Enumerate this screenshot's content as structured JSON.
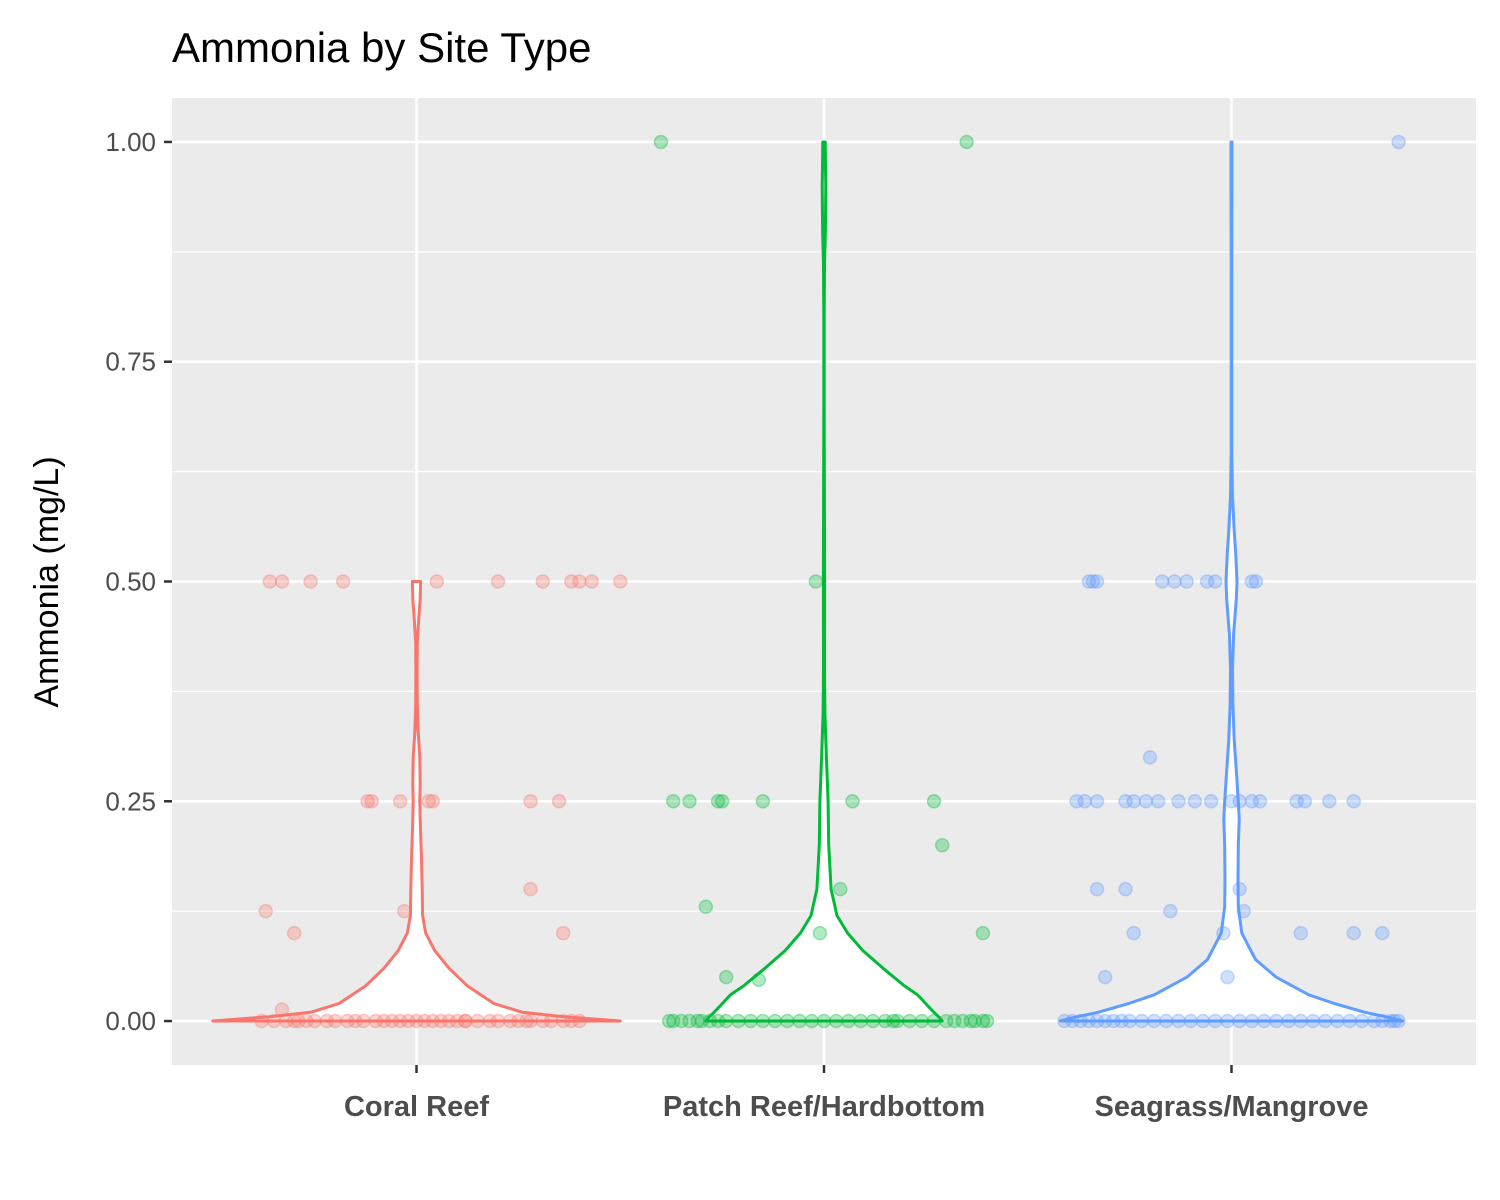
{
  "chart_data": {
    "type": "violin",
    "title": "Ammonia by Site Type",
    "xlabel": "",
    "ylabel": "Ammonia (mg/L)",
    "ylim": [
      -0.05,
      1.05
    ],
    "yticks": [
      0.0,
      0.25,
      0.5,
      0.75,
      1.0
    ],
    "ytick_labels": [
      "0.00",
      "0.25",
      "0.50",
      "0.75",
      "1.00"
    ],
    "categories": [
      "Coral Reef",
      "Patch Reef/Hardbottom",
      "Seagrass/Mangrove"
    ],
    "grid": true,
    "legend": "none",
    "colors": {
      "panel_bg": "#ebebeb",
      "grid": "#ffffff",
      "violin_fill": "#ffffff",
      "tick": "#333333"
    },
    "series": [
      {
        "category": "Coral Reef",
        "color": "#F8766D",
        "max_half_width": 0.5,
        "violin_profile": [
          [
            0.0,
            1.0
          ],
          [
            0.005,
            0.72
          ],
          [
            0.01,
            0.52
          ],
          [
            0.02,
            0.38
          ],
          [
            0.04,
            0.25
          ],
          [
            0.06,
            0.16
          ],
          [
            0.08,
            0.09
          ],
          [
            0.1,
            0.045
          ],
          [
            0.12,
            0.03
          ],
          [
            0.15,
            0.028
          ],
          [
            0.18,
            0.025
          ],
          [
            0.2,
            0.022
          ],
          [
            0.23,
            0.018
          ],
          [
            0.25,
            0.016
          ],
          [
            0.27,
            0.018
          ],
          [
            0.3,
            0.016
          ],
          [
            0.33,
            0.008
          ],
          [
            0.36,
            0.004
          ],
          [
            0.4,
            0.003
          ],
          [
            0.43,
            0.004
          ],
          [
            0.46,
            0.012
          ],
          [
            0.48,
            0.018
          ],
          [
            0.5,
            0.02
          ]
        ],
        "points": [
          [
            0.5,
            0.5
          ],
          [
            0.4,
            0.5
          ],
          [
            0.2,
            0.5
          ],
          [
            0.05,
            0.5
          ],
          [
            0.38,
            0.5
          ],
          [
            0.43,
            0.5
          ],
          [
            0.31,
            0.5
          ],
          [
            -0.36,
            0.5
          ],
          [
            -0.26,
            0.5
          ],
          [
            -0.18,
            0.5
          ],
          [
            -0.33,
            0.5
          ],
          [
            -0.12,
            0.25
          ],
          [
            -0.11,
            0.25
          ],
          [
            -0.04,
            0.25
          ],
          [
            0.03,
            0.25
          ],
          [
            0.04,
            0.25
          ],
          [
            0.28,
            0.25
          ],
          [
            0.35,
            0.25
          ],
          [
            -0.37,
            0.125
          ],
          [
            -0.03,
            0.125
          ],
          [
            0.28,
            0.15
          ],
          [
            0.36,
            0.1
          ],
          [
            -0.3,
            0.1
          ],
          [
            -0.33,
            0.013
          ],
          [
            -0.38,
            0.0
          ],
          [
            -0.35,
            0.0
          ],
          [
            -0.32,
            0.0
          ],
          [
            -0.3,
            0.0
          ],
          [
            -0.27,
            0.0
          ],
          [
            -0.25,
            0.0
          ],
          [
            -0.2,
            0.0
          ],
          [
            -0.17,
            0.0
          ],
          [
            -0.15,
            0.0
          ],
          [
            -0.13,
            0.0
          ],
          [
            -0.1,
            0.0
          ],
          [
            -0.08,
            0.0
          ],
          [
            -0.06,
            0.0
          ],
          [
            -0.04,
            0.0
          ],
          [
            -0.02,
            0.0
          ],
          [
            0.0,
            0.0
          ],
          [
            0.02,
            0.0
          ],
          [
            0.04,
            0.0
          ],
          [
            0.06,
            0.0
          ],
          [
            0.08,
            0.0
          ],
          [
            0.1,
            0.0
          ],
          [
            0.12,
            0.0
          ],
          [
            0.15,
            0.0
          ],
          [
            0.18,
            0.0
          ],
          [
            0.2,
            0.0
          ],
          [
            0.23,
            0.0
          ],
          [
            0.25,
            0.0
          ],
          [
            0.28,
            0.0
          ],
          [
            0.31,
            0.0
          ],
          [
            0.33,
            0.0
          ],
          [
            0.36,
            0.0
          ],
          [
            0.38,
            0.0
          ],
          [
            0.4,
            0.0
          ],
          [
            0.27,
            0.0
          ],
          [
            0.12,
            0.0
          ],
          [
            -0.22,
            0.0
          ],
          [
            -0.29,
            0.0
          ]
        ]
      },
      {
        "category": "Patch Reef/Hardbottom",
        "color": "#00BA38",
        "max_half_width": 0.29,
        "violin_profile": [
          [
            0.0,
            1.0
          ],
          [
            0.005,
            0.97
          ],
          [
            0.01,
            0.93
          ],
          [
            0.02,
            0.86
          ],
          [
            0.03,
            0.79
          ],
          [
            0.04,
            0.68
          ],
          [
            0.06,
            0.5
          ],
          [
            0.08,
            0.33
          ],
          [
            0.1,
            0.2
          ],
          [
            0.12,
            0.11
          ],
          [
            0.15,
            0.06
          ],
          [
            0.2,
            0.04
          ],
          [
            0.25,
            0.035
          ],
          [
            0.3,
            0.02
          ],
          [
            0.35,
            0.008
          ],
          [
            0.4,
            0.004
          ],
          [
            0.5,
            0.005
          ],
          [
            0.6,
            0.003
          ],
          [
            0.7,
            0.002
          ],
          [
            0.8,
            0.002
          ],
          [
            0.86,
            0.004
          ],
          [
            0.9,
            0.012
          ],
          [
            0.95,
            0.015
          ],
          [
            0.98,
            0.012
          ],
          [
            1.0,
            0.01
          ]
        ],
        "points": [
          [
            -0.4,
            1.0
          ],
          [
            0.35,
            1.0
          ],
          [
            -0.02,
            0.5
          ],
          [
            -0.37,
            0.25
          ],
          [
            -0.33,
            0.25
          ],
          [
            -0.26,
            0.25
          ],
          [
            -0.25,
            0.25
          ],
          [
            -0.15,
            0.25
          ],
          [
            0.07,
            0.25
          ],
          [
            0.27,
            0.25
          ],
          [
            0.29,
            0.2
          ],
          [
            0.04,
            0.15
          ],
          [
            -0.29,
            0.13
          ],
          [
            -0.01,
            0.1
          ],
          [
            0.39,
            0.1
          ],
          [
            -0.24,
            0.05
          ],
          [
            -0.16,
            0.047
          ],
          [
            -0.38,
            0.0
          ],
          [
            -0.37,
            0.0
          ],
          [
            -0.35,
            0.0
          ],
          [
            -0.33,
            0.0
          ],
          [
            -0.3,
            0.0
          ],
          [
            -0.28,
            0.0
          ],
          [
            -0.26,
            0.0
          ],
          [
            -0.24,
            0.0
          ],
          [
            -0.21,
            0.0
          ],
          [
            -0.18,
            0.0
          ],
          [
            -0.15,
            0.0
          ],
          [
            -0.12,
            0.0
          ],
          [
            -0.09,
            0.0
          ],
          [
            -0.06,
            0.0
          ],
          [
            -0.03,
            0.0
          ],
          [
            0.0,
            0.0
          ],
          [
            0.03,
            0.0
          ],
          [
            0.06,
            0.0
          ],
          [
            0.09,
            0.0
          ],
          [
            0.12,
            0.0
          ],
          [
            0.15,
            0.0
          ],
          [
            0.18,
            0.0
          ],
          [
            0.21,
            0.0
          ],
          [
            0.24,
            0.0
          ],
          [
            0.27,
            0.0
          ],
          [
            0.3,
            0.0
          ],
          [
            0.32,
            0.0
          ],
          [
            0.34,
            0.0
          ],
          [
            0.36,
            0.0
          ],
          [
            0.37,
            0.0
          ],
          [
            0.39,
            0.0
          ],
          [
            0.4,
            0.0
          ],
          [
            -0.31,
            0.0
          ],
          [
            0.17,
            0.0
          ]
        ]
      },
      {
        "category": "Seagrass/Mangrove",
        "color": "#619CFF",
        "max_half_width": 0.42,
        "violin_profile": [
          [
            0.0,
            1.0
          ],
          [
            0.005,
            0.9
          ],
          [
            0.01,
            0.78
          ],
          [
            0.02,
            0.6
          ],
          [
            0.03,
            0.45
          ],
          [
            0.05,
            0.26
          ],
          [
            0.07,
            0.14
          ],
          [
            0.1,
            0.06
          ],
          [
            0.13,
            0.04
          ],
          [
            0.16,
            0.038
          ],
          [
            0.2,
            0.04
          ],
          [
            0.23,
            0.045
          ],
          [
            0.25,
            0.04
          ],
          [
            0.28,
            0.03
          ],
          [
            0.32,
            0.016
          ],
          [
            0.36,
            0.008
          ],
          [
            0.4,
            0.006
          ],
          [
            0.44,
            0.012
          ],
          [
            0.48,
            0.028
          ],
          [
            0.5,
            0.032
          ],
          [
            0.53,
            0.025
          ],
          [
            0.56,
            0.015
          ],
          [
            0.6,
            0.005
          ],
          [
            0.65,
            0.002
          ],
          [
            0.75,
            0.002
          ],
          [
            0.85,
            0.002
          ],
          [
            0.95,
            0.003
          ],
          [
            1.0,
            0.003
          ]
        ],
        "points": [
          [
            0.41,
            1.0
          ],
          [
            -0.35,
            0.5
          ],
          [
            -0.34,
            0.5
          ],
          [
            -0.33,
            0.5
          ],
          [
            -0.17,
            0.5
          ],
          [
            -0.14,
            0.5
          ],
          [
            -0.11,
            0.5
          ],
          [
            -0.06,
            0.5
          ],
          [
            -0.04,
            0.5
          ],
          [
            0.05,
            0.5
          ],
          [
            0.06,
            0.5
          ],
          [
            -0.38,
            0.25
          ],
          [
            -0.36,
            0.25
          ],
          [
            -0.33,
            0.25
          ],
          [
            -0.26,
            0.25
          ],
          [
            -0.24,
            0.25
          ],
          [
            -0.21,
            0.25
          ],
          [
            -0.18,
            0.25
          ],
          [
            -0.13,
            0.25
          ],
          [
            -0.09,
            0.25
          ],
          [
            -0.05,
            0.25
          ],
          [
            0.0,
            0.25
          ],
          [
            0.02,
            0.25
          ],
          [
            0.05,
            0.25
          ],
          [
            0.07,
            0.25
          ],
          [
            0.16,
            0.25
          ],
          [
            0.18,
            0.25
          ],
          [
            0.24,
            0.25
          ],
          [
            0.3,
            0.25
          ],
          [
            -0.2,
            0.3
          ],
          [
            -0.33,
            0.15
          ],
          [
            -0.26,
            0.15
          ],
          [
            0.02,
            0.15
          ],
          [
            -0.15,
            0.125
          ],
          [
            0.03,
            0.125
          ],
          [
            -0.24,
            0.1
          ],
          [
            -0.02,
            0.1
          ],
          [
            0.17,
            0.1
          ],
          [
            0.3,
            0.1
          ],
          [
            0.37,
            0.1
          ],
          [
            -0.31,
            0.05
          ],
          [
            -0.01,
            0.05
          ],
          [
            -0.41,
            0.0
          ],
          [
            -0.39,
            0.0
          ],
          [
            -0.37,
            0.0
          ],
          [
            -0.35,
            0.0
          ],
          [
            -0.33,
            0.0
          ],
          [
            -0.31,
            0.0
          ],
          [
            -0.29,
            0.0
          ],
          [
            -0.27,
            0.0
          ],
          [
            -0.25,
            0.0
          ],
          [
            -0.22,
            0.0
          ],
          [
            -0.19,
            0.0
          ],
          [
            -0.16,
            0.0
          ],
          [
            -0.13,
            0.0
          ],
          [
            -0.1,
            0.0
          ],
          [
            -0.07,
            0.0
          ],
          [
            -0.04,
            0.0
          ],
          [
            -0.01,
            0.0
          ],
          [
            0.02,
            0.0
          ],
          [
            0.05,
            0.0
          ],
          [
            0.08,
            0.0
          ],
          [
            0.11,
            0.0
          ],
          [
            0.14,
            0.0
          ],
          [
            0.17,
            0.0
          ],
          [
            0.2,
            0.0
          ],
          [
            0.23,
            0.0
          ],
          [
            0.26,
            0.0
          ],
          [
            0.29,
            0.0
          ],
          [
            0.32,
            0.0
          ],
          [
            0.35,
            0.0
          ],
          [
            0.37,
            0.0
          ],
          [
            0.39,
            0.0
          ],
          [
            0.4,
            0.0
          ],
          [
            0.41,
            0.0
          ]
        ]
      }
    ]
  }
}
